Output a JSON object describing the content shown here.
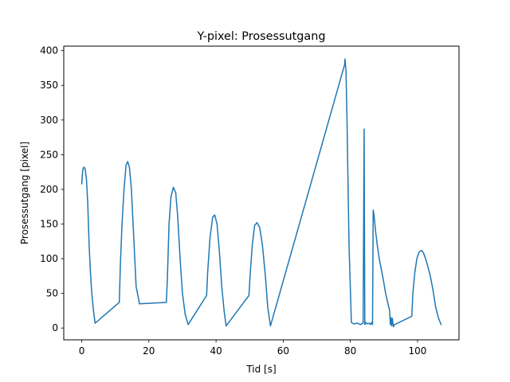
{
  "chart_data": {
    "type": "line",
    "title": "Y-pixel: Prosessutgang",
    "xlabel": "Tid [s]",
    "ylabel": "Prosessutgang [pixel]",
    "xlim": [
      -5.35,
      112.35
    ],
    "ylim": [
      -17.0,
      406.5
    ],
    "xticks": [
      0,
      20,
      40,
      60,
      80,
      100
    ],
    "yticks": [
      0,
      50,
      100,
      150,
      200,
      250,
      300,
      350,
      400
    ],
    "grid": false,
    "color": "#1f77b4",
    "series": [
      {
        "values_x": [
          0,
          0.3,
          0.6,
          1.0,
          1.4,
          1.8,
          2.2,
          2.6,
          3.0,
          3.5,
          4.0,
          11.2,
          11.5,
          12.0,
          12.6,
          13.2,
          13.7,
          14.2,
          14.8,
          15.5,
          16.2,
          17.2,
          25.2,
          25.5,
          26.0,
          26.6,
          27.3,
          28.0,
          28.6,
          29.3,
          30.0,
          30.8,
          31.7,
          37.2,
          37.5,
          38.2,
          39.0,
          39.6,
          40.3,
          41.0,
          41.7,
          42.4,
          43.0,
          49.8,
          50.2,
          50.8,
          51.5,
          52.2,
          53.0,
          53.8,
          54.6,
          55.4,
          56.2,
          78.3,
          78.4,
          78.7,
          79.0,
          79.6,
          80.3,
          81.0,
          82.0,
          83.0,
          83.8,
          84.1,
          84.3,
          84.6,
          85.0,
          85.5,
          86.0,
          86.3,
          86.6,
          86.8,
          87.0,
          87.5,
          88.0,
          88.6,
          89.2,
          89.8,
          90.5,
          91.2,
          91.7,
          91.9,
          92.1,
          92.3,
          92.5,
          92.8,
          93.2,
          98.3,
          98.6,
          99.2,
          99.8,
          100.5,
          101.2,
          101.8,
          102.4,
          103.0,
          103.8,
          104.6,
          105.4,
          106.2,
          107.0
        ],
        "values_y": [
          208,
          228,
          232,
          230,
          215,
          180,
          120,
          80,
          50,
          25,
          7,
          37,
          90,
          150,
          200,
          235,
          240,
          232,
          200,
          130,
          60,
          35,
          37,
          70,
          150,
          190,
          203,
          195,
          160,
          100,
          50,
          20,
          5,
          47,
          80,
          130,
          160,
          163,
          150,
          110,
          60,
          25,
          3,
          47,
          80,
          120,
          148,
          152,
          145,
          120,
          80,
          30,
          3,
          380,
          388,
          370,
          300,
          120,
          8,
          6,
          7,
          5,
          7,
          287,
          5,
          8,
          6,
          7,
          5,
          8,
          5,
          170,
          165,
          140,
          120,
          100,
          85,
          70,
          50,
          35,
          25,
          5,
          15,
          3,
          14,
          2,
          5,
          17,
          50,
          80,
          100,
          110,
          112,
          108,
          100,
          90,
          75,
          55,
          30,
          15,
          5
        ]
      }
    ]
  }
}
